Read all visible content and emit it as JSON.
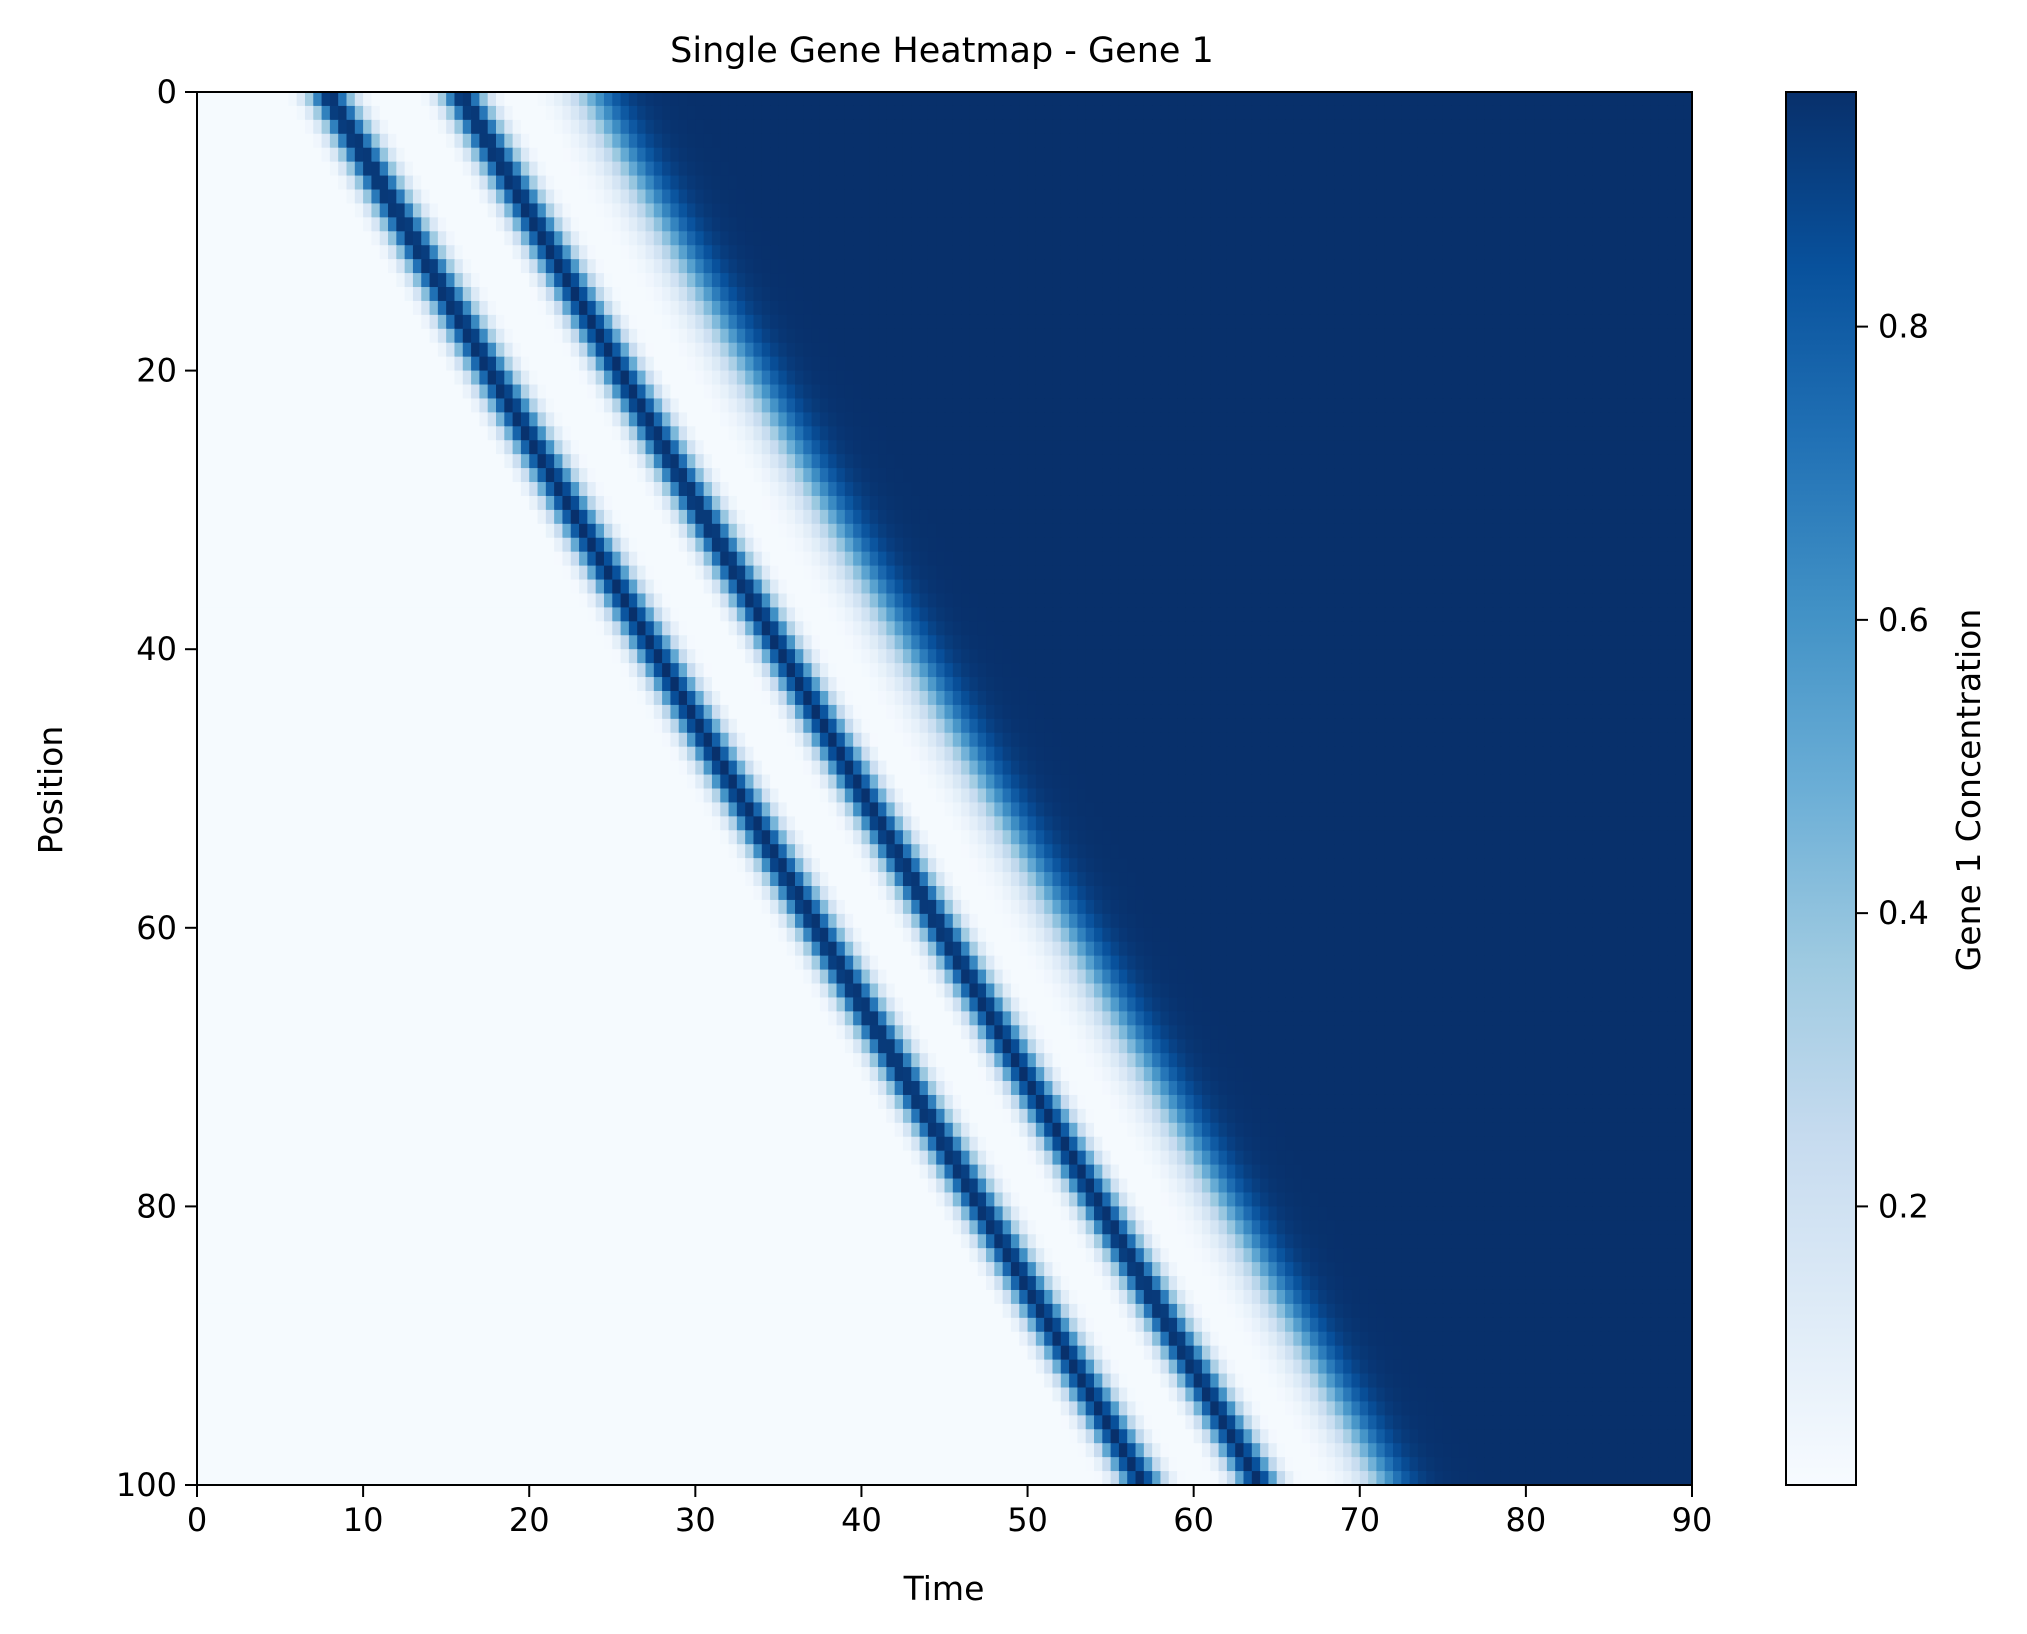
{
  "chart_data": {
    "type": "heatmap",
    "title": "Single Gene Heatmap - Gene 1",
    "xlabel": "Time",
    "ylabel": "Position",
    "xlim": [
      0,
      90
    ],
    "ylim": [
      100,
      0
    ],
    "x_ticks": [
      "0",
      "10",
      "20",
      "30",
      "40",
      "50",
      "60",
      "70",
      "80",
      "90"
    ],
    "y_ticks": [
      "0",
      "20",
      "40",
      "60",
      "80",
      "100"
    ],
    "x_tick_values": [
      0,
      10,
      20,
      30,
      40,
      50,
      60,
      70,
      80,
      90
    ],
    "y_tick_values": [
      0,
      20,
      40,
      60,
      80,
      100
    ],
    "colormap": "Blues",
    "colormap_stops": [
      "#f7fbff",
      "#deebf7",
      "#c6dbef",
      "#9ecae1",
      "#6baed6",
      "#4292c6",
      "#2171b5",
      "#08519c",
      "#08306b"
    ],
    "colorbar": {
      "label": "Gene 1 Concentration",
      "range": [
        0.01,
        0.96
      ],
      "ticks": [
        "0.2",
        "0.4",
        "0.6",
        "0.8"
      ],
      "tick_values": [
        0.2,
        0.4,
        0.6,
        0.8
      ]
    },
    "pattern": {
      "description_of_data": "diagonal traveling bands",
      "background_value": 0.02,
      "saturated_value": 0.96,
      "bands_start_time_at_position_0": [
        7.8,
        15.8
      ],
      "bands_start_time_at_position_100": [
        57.0,
        64.0
      ],
      "band_half_width_time": 1.3,
      "front_time_at_position_0": [
        23.5,
        71.5
      ],
      "front_time_at_position_100": [
        71.5,
        76.0
      ]
    }
  }
}
